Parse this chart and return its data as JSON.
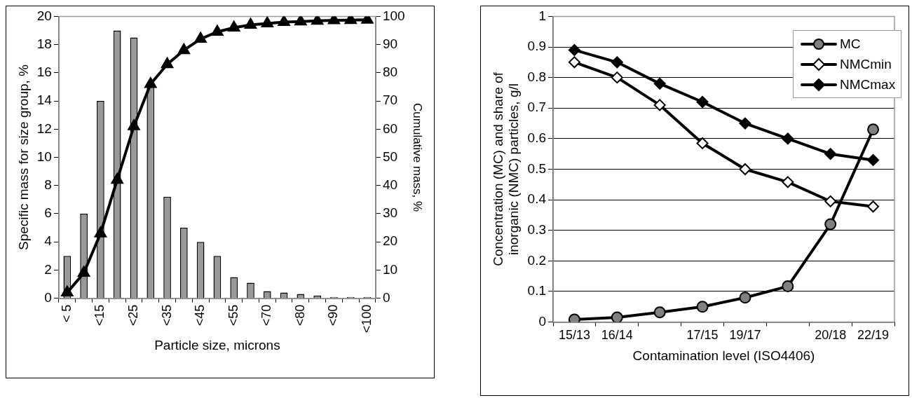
{
  "chart_data": [
    {
      "type": "bar",
      "xlabel": "Particle size, microns",
      "ylabel": "Specific mass for size group, %",
      "y2label": "Cumulative mass, %",
      "categories": [
        "< 5",
        null,
        "<15",
        null,
        "<25",
        null,
        "<35",
        null,
        "<45",
        null,
        "<55",
        null,
        "<70",
        null,
        "<80",
        null,
        "<90",
        null,
        "<100"
      ],
      "series": [
        {
          "type": "bar",
          "color": "#999999",
          "values": [
            3,
            6,
            14,
            19,
            18.5,
            15,
            7.2,
            5,
            4,
            3,
            1.5,
            1.1,
            0.5,
            0.4,
            0.3,
            0.2,
            0.1,
            0.1,
            0.1
          ]
        },
        {
          "type": "line",
          "axis": "y2",
          "color": "#000000",
          "marker": "triangle",
          "values": [
            2,
            9,
            23,
            42,
            61,
            76,
            83,
            88,
            92,
            94.5,
            96,
            97,
            97.5,
            98,
            98.2,
            98.4,
            98.6,
            98.7,
            98.8
          ]
        }
      ],
      "ylim": [
        0,
        20
      ],
      "yticks": [
        0,
        2,
        4,
        6,
        8,
        10,
        12,
        14,
        16,
        18,
        20
      ],
      "y2lim": [
        0,
        100
      ],
      "y2ticks": [
        0,
        10,
        20,
        30,
        40,
        50,
        60,
        70,
        80,
        90,
        100
      ],
      "grid": false,
      "legend": false
    },
    {
      "type": "line",
      "xlabel": "Contamination level (ISO4406)",
      "ylabel": "Concentration (MC) and share of\ninorganic (NMC) particles, g/l",
      "categories": [
        "15/13",
        "16/14",
        null,
        "17/15",
        "19/17",
        null,
        "20/18",
        "22/19"
      ],
      "series": [
        {
          "name": "MC",
          "color": "#808080",
          "marker": "circle",
          "values": [
            0.008,
            0.015,
            0.032,
            0.05,
            0.08,
            0.117,
            0.32,
            0.63
          ]
        },
        {
          "name": "NMCmin",
          "color": "#ffffff",
          "marker": "diamond",
          "values": [
            0.85,
            0.8,
            0.71,
            0.585,
            0.5,
            0.458,
            0.395,
            0.378
          ]
        },
        {
          "name": "NMCmax",
          "color": "#000000",
          "marker": "diamond",
          "values": [
            0.89,
            0.85,
            0.78,
            0.72,
            0.65,
            0.6,
            0.55,
            0.53
          ]
        }
      ],
      "ylim": [
        0,
        1
      ],
      "yticks": [
        0,
        0.1,
        0.2,
        0.3,
        0.4,
        0.5,
        0.6,
        0.7,
        0.8,
        0.9,
        1
      ],
      "grid": "y",
      "legend": "top right"
    }
  ]
}
